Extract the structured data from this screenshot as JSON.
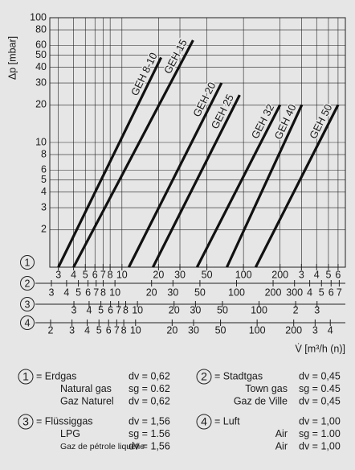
{
  "chart_data": {
    "type": "line",
    "log": true,
    "grid": true,
    "ylabel": "Δp [mbar]",
    "xlabel": "V̇ [m³/h (n)]",
    "ylim": [
      1,
      100
    ],
    "yticks": [
      2,
      3,
      4,
      5,
      6,
      8,
      10,
      20,
      30,
      40,
      50,
      60,
      80,
      100
    ],
    "x_axes": [
      {
        "label": "1",
        "xlim": [
          2.55,
          689
        ],
        "xticks": [
          3,
          4,
          5,
          6,
          7,
          8,
          10,
          20,
          30,
          50,
          100,
          200,
          {
            "value": 300,
            "label": "3"
          },
          {
            "value": 400,
            "label": "4"
          },
          {
            "value": 500,
            "label": "5"
          },
          {
            "value": 600,
            "label": "6"
          }
        ]
      },
      {
        "label": "2",
        "xlim": [
          2.91,
          786
        ],
        "xticks": [
          3,
          4,
          5,
          6,
          7,
          8,
          10,
          20,
          30,
          50,
          100,
          200,
          300,
          {
            "value": 400,
            "label": "4"
          },
          {
            "value": 500,
            "label": "5"
          },
          {
            "value": 600,
            "label": "6"
          },
          {
            "value": 700,
            "label": "7"
          }
        ]
      },
      {
        "label": "3",
        "xlim": [
          1.9,
          513
        ],
        "xticks": [
          3,
          4,
          5,
          6,
          7,
          8,
          10,
          20,
          30,
          50,
          100,
          {
            "value": 200,
            "label": "2"
          },
          {
            "value": 300,
            "label": "3"
          }
        ]
      },
      {
        "label": "4",
        "xlim": [
          1.97,
          532
        ],
        "xticks": [
          2,
          3,
          4,
          5,
          6,
          7,
          8,
          10,
          20,
          30,
          50,
          100,
          200,
          {
            "value": 300,
            "label": "3"
          },
          {
            "value": 400,
            "label": "4"
          }
        ]
      }
    ],
    "series": [
      {
        "name": "GEH 8-10",
        "color": "#111111",
        "x": [
          3,
          21
        ],
        "values": [
          1,
          48
        ]
      },
      {
        "name": "GEH 15",
        "color": "#111111",
        "x": [
          4,
          38.5
        ],
        "values": [
          1,
          66
        ]
      },
      {
        "name": "GEH 20",
        "color": "#111111",
        "x": [
          11.4,
          66
        ],
        "values": [
          1,
          30
        ]
      },
      {
        "name": "GEH 25",
        "color": "#111111",
        "x": [
          18,
          93
        ],
        "values": [
          1,
          24
        ]
      },
      {
        "name": "GEH 32",
        "color": "#111111",
        "x": [
          41.5,
          200
        ],
        "values": [
          1,
          20
        ]
      },
      {
        "name": "GEH 40",
        "color": "#111111",
        "x": [
          73,
          302
        ],
        "values": [
          1,
          20
        ]
      },
      {
        "name": "GEH 50",
        "color": "#111111",
        "x": [
          126,
          600
        ],
        "values": [
          1,
          20
        ]
      }
    ],
    "gas_legend": [
      {
        "label": "1",
        "rows": [
          {
            "name": "= Erdgas",
            "value": "dv = 0,62"
          },
          {
            "name": "Natural gas",
            "value": "sg = 0.62"
          },
          {
            "name": "Gaz Naturel",
            "value": "dv = 0,62"
          }
        ]
      },
      {
        "label": "2",
        "rows": [
          {
            "name": "= Stadtgas",
            "value": "dv = 0,45"
          },
          {
            "name": "Town gas",
            "value": "sg = 0.45"
          },
          {
            "name": "Gaz de Ville",
            "value": "dv = 0,45"
          }
        ]
      },
      {
        "label": "3",
        "rows": [
          {
            "name": "= Flüssiggas",
            "value": "dv = 1,56"
          },
          {
            "name": "LPG",
            "value": "sg = 1.56"
          },
          {
            "name": "Gaz de pétrole liquéfie",
            "value": "dv = 1,56"
          }
        ]
      },
      {
        "label": "4",
        "rows": [
          {
            "name": "= Luft",
            "value": "dv = 1,00"
          },
          {
            "name": "Air",
            "value": "sg = 1.00"
          },
          {
            "name": "Air",
            "value": "dv = 1,00"
          }
        ]
      }
    ]
  }
}
